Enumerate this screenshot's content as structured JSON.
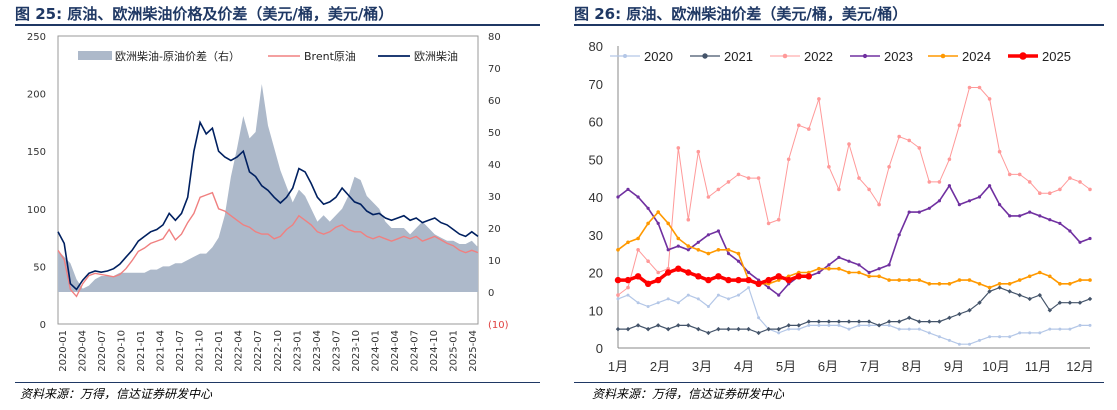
{
  "left": {
    "fig_label": "图 25:",
    "title": "原油、欧洲柴油价格及价差（美元/桶，美元/桶）",
    "source": "资料来源：万得，信达证券研发中心"
  },
  "right": {
    "fig_label": "图 26:",
    "title": "原油、欧洲柴油价差（美元/桶，美元/桶）",
    "source": "资料来源：万得，信达证券研发中心"
  },
  "colors": {
    "title": "#1f3864",
    "spread_area": "#adb9ca",
    "brent": "#f08080",
    "diesel": "#002060",
    "y2020": "#b4c7e7",
    "y2021": "#44546a",
    "y2022": "#ff9999",
    "y2023": "#7030a0",
    "y2024": "#ff9900",
    "y2025": "#ff0000"
  },
  "chart_data": [
    {
      "type": "line",
      "y_left_ticks": [
        "250",
        "200",
        "150",
        "100",
        "50",
        "0"
      ],
      "y_right_ticks": [
        "80",
        "70",
        "60",
        "50",
        "40",
        "30",
        "20",
        "10",
        "0",
        "(10)"
      ],
      "ylim_left": [
        0,
        250
      ],
      "ylim_right": [
        -10,
        80
      ],
      "x_ticks": [
        "2020-01",
        "2020-04",
        "2020-07",
        "2020-10",
        "2021-01",
        "2021-04",
        "2021-07",
        "2021-10",
        "2022-01",
        "2022-04",
        "2022-07",
        "2022-10",
        "2023-01",
        "2023-04",
        "2023-07",
        "2023-10",
        "2024-01",
        "2024-04",
        "2024-07",
        "2024-10",
        "2025-01",
        "2025-04"
      ],
      "legend": {
        "position": "top",
        "entries": [
          "欧洲柴油-原油价差（右）",
          "Brent原油",
          "欧洲柴油"
        ]
      },
      "series": [
        {
          "name": "欧洲柴油-原油价差（右）",
          "kind": "area",
          "axis": "right",
          "values": [
            13,
            11,
            9,
            4,
            1,
            2,
            4,
            5,
            5,
            5,
            6,
            6,
            6,
            6,
            6,
            7,
            7,
            8,
            8,
            9,
            9,
            10,
            11,
            12,
            12,
            14,
            17,
            24,
            36,
            45,
            55,
            48,
            50,
            65,
            52,
            45,
            38,
            33,
            28,
            32,
            30,
            26,
            22,
            24,
            22,
            24,
            26,
            30,
            36,
            35,
            30,
            28,
            26,
            22,
            20,
            20,
            20,
            18,
            20,
            22,
            20,
            18,
            17,
            16,
            16,
            15,
            15,
            16,
            14
          ]
        },
        {
          "name": "Brent原油",
          "kind": "line",
          "axis": "left",
          "values": [
            64,
            56,
            30,
            24,
            35,
            42,
            44,
            43,
            42,
            41,
            43,
            48,
            55,
            63,
            66,
            70,
            72,
            74,
            82,
            73,
            78,
            88,
            96,
            110,
            112,
            114,
            100,
            98,
            94,
            90,
            86,
            84,
            80,
            78,
            78,
            74,
            76,
            82,
            86,
            94,
            90,
            86,
            80,
            78,
            80,
            84,
            86,
            82,
            80,
            80,
            76,
            74,
            76,
            74,
            72,
            74,
            76,
            74,
            76,
            72,
            74,
            76,
            73,
            70,
            68,
            64,
            62,
            64,
            62
          ]
        },
        {
          "name": "欧洲柴油",
          "kind": "line",
          "axis": "left",
          "values": [
            80,
            70,
            35,
            30,
            38,
            44,
            46,
            45,
            46,
            48,
            52,
            58,
            64,
            72,
            76,
            80,
            82,
            86,
            96,
            90,
            96,
            110,
            150,
            175,
            165,
            170,
            150,
            145,
            142,
            145,
            150,
            132,
            128,
            120,
            116,
            110,
            105,
            110,
            118,
            135,
            132,
            122,
            110,
            104,
            106,
            110,
            118,
            112,
            106,
            104,
            98,
            95,
            96,
            92,
            90,
            92,
            94,
            90,
            92,
            88,
            90,
            92,
            88,
            86,
            82,
            78,
            76,
            80,
            76
          ]
        }
      ]
    },
    {
      "type": "line",
      "y_ticks": [
        "80",
        "70",
        "60",
        "50",
        "40",
        "30",
        "20",
        "10",
        "0"
      ],
      "ylim": [
        0,
        80
      ],
      "x_ticks": [
        "1月",
        "2月",
        "3月",
        "4月",
        "5月",
        "6月",
        "7月",
        "8月",
        "9月",
        "10月",
        "11月",
        "12月"
      ],
      "legend": {
        "position": "top",
        "entries": [
          "2020",
          "2021",
          "2022",
          "2023",
          "2024",
          "2025"
        ]
      },
      "series": [
        {
          "name": "2020",
          "values": [
            13,
            14,
            12,
            11,
            12,
            13,
            12,
            14,
            13,
            11,
            14,
            13,
            14,
            16,
            8,
            5,
            4,
            5,
            5,
            6,
            6,
            6,
            6,
            5,
            6,
            6,
            6,
            6,
            5,
            5,
            5,
            4,
            3,
            2,
            1,
            1,
            2,
            3,
            3,
            3,
            4,
            4,
            4,
            5,
            5,
            5,
            6,
            6
          ]
        },
        {
          "name": "2021",
          "values": [
            5,
            5,
            6,
            5,
            6,
            5,
            6,
            6,
            5,
            4,
            5,
            5,
            5,
            5,
            4,
            5,
            5,
            6,
            6,
            7,
            7,
            7,
            7,
            7,
            7,
            7,
            6,
            7,
            7,
            8,
            7,
            7,
            7,
            8,
            9,
            10,
            12,
            15,
            16,
            15,
            14,
            13,
            14,
            10,
            12,
            12,
            12,
            13
          ]
        },
        {
          "name": "2022",
          "values": [
            14,
            16,
            26,
            23,
            20,
            21,
            53,
            34,
            52,
            40,
            42,
            44,
            46,
            45,
            45,
            33,
            34,
            50,
            59,
            58,
            66,
            48,
            42,
            54,
            45,
            42,
            38,
            48,
            56,
            55,
            53,
            44,
            44,
            50,
            59,
            69,
            69,
            66,
            52,
            46,
            46,
            44,
            41,
            41,
            42,
            45,
            44,
            42
          ]
        },
        {
          "name": "2023",
          "values": [
            40,
            42,
            40,
            37,
            33,
            26,
            27,
            26,
            28,
            30,
            31,
            25,
            23,
            20,
            18,
            16,
            14,
            17,
            19,
            19,
            20,
            22,
            24,
            23,
            22,
            20,
            21,
            22,
            30,
            36,
            36,
            37,
            39,
            43,
            38,
            39,
            40,
            43,
            38,
            35,
            35,
            36,
            35,
            34,
            33,
            31,
            28,
            29
          ]
        },
        {
          "name": "2024",
          "values": [
            26,
            28,
            29,
            33,
            36,
            33,
            29,
            27,
            26,
            25,
            26,
            26,
            25,
            18,
            17,
            17,
            18,
            19,
            20,
            20,
            21,
            21,
            21,
            20,
            20,
            19,
            19,
            18,
            18,
            18,
            18,
            17,
            17,
            17,
            18,
            18,
            17,
            16,
            17,
            17,
            18,
            19,
            20,
            19,
            17,
            17,
            18,
            18
          ]
        },
        {
          "name": "2025",
          "values": [
            18,
            18,
            19,
            17,
            18,
            20,
            21,
            20,
            19,
            18,
            19,
            18,
            18,
            18,
            17,
            18,
            19,
            18,
            19,
            19
          ]
        }
      ]
    }
  ]
}
